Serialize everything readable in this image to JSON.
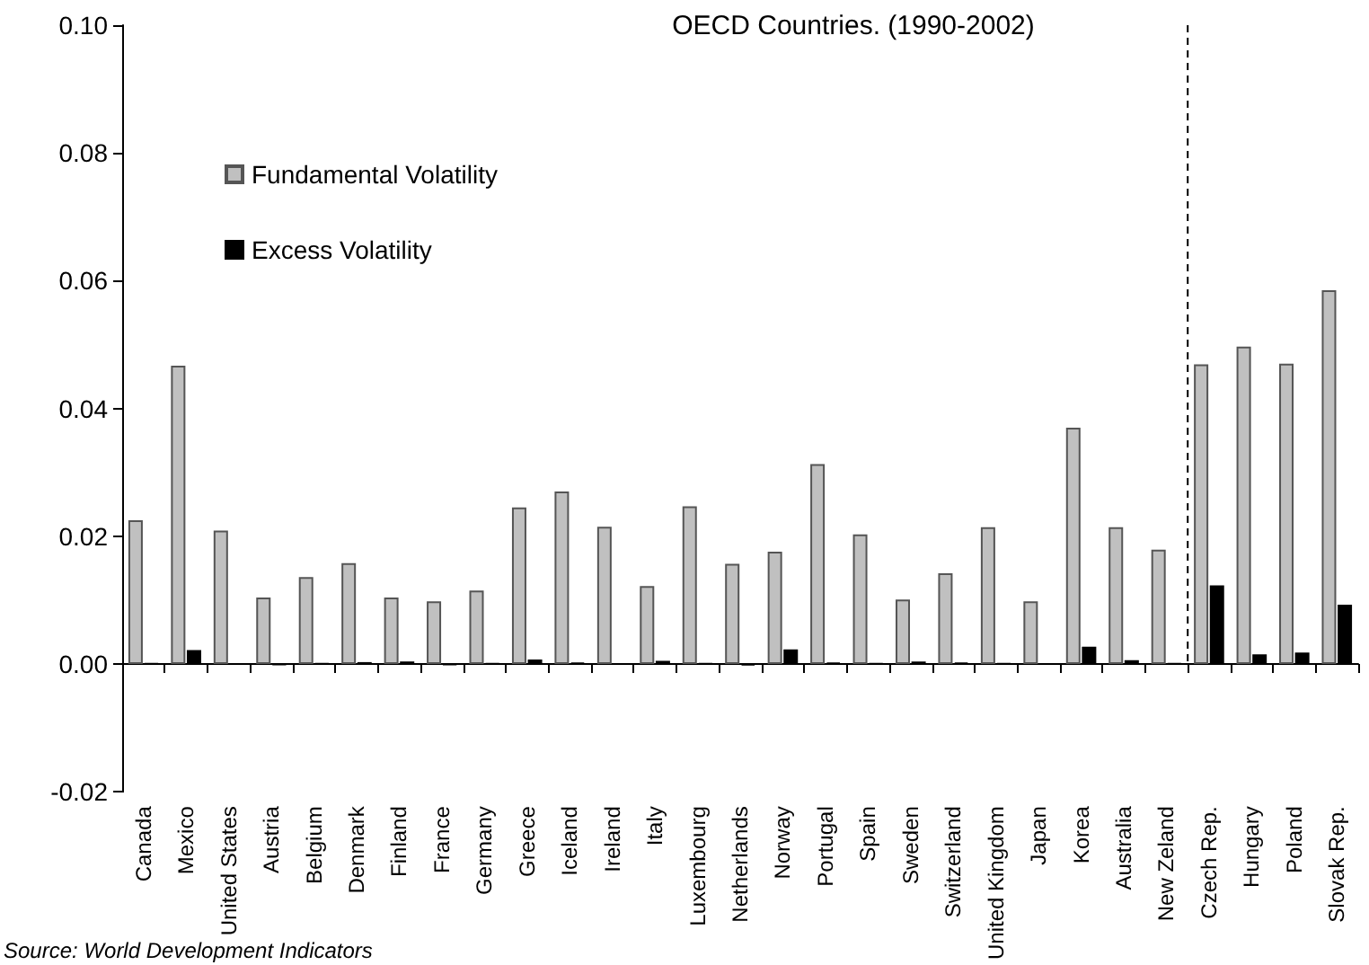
{
  "chart_data": {
    "type": "bar",
    "title": "OECD Countries. (1990-2002)",
    "categories": [
      "Canada",
      "Mexico",
      "United States",
      "Austria",
      "Belgium",
      "Denmark",
      "Finland",
      "France",
      "Germany",
      "Greece",
      "Iceland",
      "Ireland",
      "Italy",
      "Luxembourg",
      "Netherlands",
      "Norway",
      "Portugal",
      "Spain",
      "Sweden",
      "Switzerland",
      "United Kingdom",
      "Japan",
      "Korea",
      "Australia",
      "New Zeland",
      "Czech Rep.",
      "Hungary",
      "Poland",
      "Slovak Rep."
    ],
    "series": [
      {
        "name": "Fundamental Volatility",
        "color": "#c0c0c0",
        "values": [
          0.0225,
          0.0467,
          0.0209,
          0.0104,
          0.0136,
          0.0158,
          0.0104,
          0.0098,
          0.0115,
          0.0245,
          0.027,
          0.0215,
          0.0122,
          0.0247,
          0.0157,
          0.0176,
          0.0313,
          0.0203,
          0.0101,
          0.0142,
          0.0214,
          0.0098,
          0.037,
          0.0214,
          0.0179,
          0.0469,
          0.0497,
          0.047,
          0.0585
        ]
      },
      {
        "name": "Excess Volatility",
        "color": "#000000",
        "values": [
          0.0001,
          0.0022,
          0,
          -0.0001,
          0.0001,
          0.0003,
          0.0004,
          -0.0001,
          0.0001,
          0.0007,
          0.0002,
          0,
          0.0005,
          0.0001,
          -0.0002,
          0.0023,
          0.0002,
          0.0001,
          0.0004,
          0.0002,
          0.0001,
          0,
          0.0027,
          0.0006,
          0.0001,
          0.0123,
          0.0015,
          0.0018,
          0.0093
        ]
      }
    ],
    "ylim": [
      -0.02,
      0.1
    ],
    "yticks": [
      {
        "value": -0.02,
        "label": "-0.02"
      },
      {
        "value": 0,
        "label": "0.00"
      },
      {
        "value": 0.02,
        "label": "0.02"
      },
      {
        "value": 0.04,
        "label": "0.04"
      },
      {
        "value": 0.06,
        "label": "0.06"
      },
      {
        "value": 0.08,
        "label": "0.08"
      },
      {
        "value": 0.1,
        "label": "0.10"
      }
    ],
    "ref_lines": [
      {
        "axis": "x",
        "value": "Czech Rep.",
        "line_style": "dashed",
        "color": "#000000"
      }
    ],
    "legend": "top left",
    "grid": false,
    "annotations": [
      "Source: World Development Indicators"
    ]
  }
}
